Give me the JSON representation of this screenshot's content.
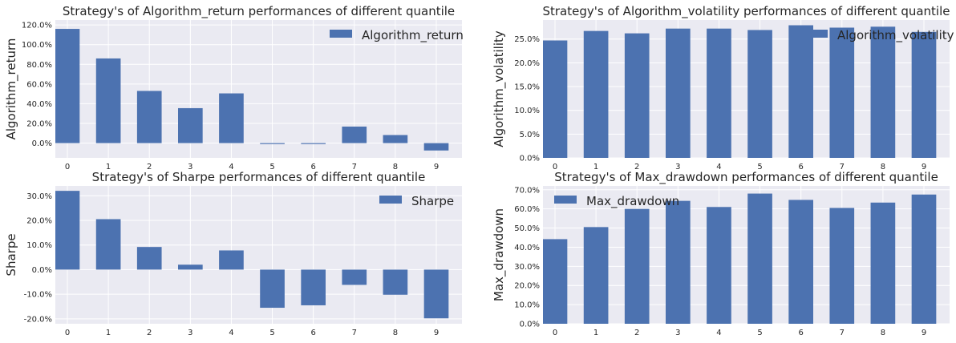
{
  "colors": {
    "bar": "#4c72b0",
    "axes_bg": "#eaeaf2",
    "grid": "#ffffff"
  },
  "chart_data": [
    {
      "type": "bar",
      "title": "Strategy's of Algorithm_return performances of different quantile",
      "ylabel": "Algorithm_return",
      "legend": "Algorithm_return",
      "legend_position": "top-right",
      "categories": [
        "0",
        "1",
        "2",
        "3",
        "4",
        "5",
        "6",
        "7",
        "8",
        "9"
      ],
      "values": [
        1.16,
        0.86,
        0.53,
        0.355,
        0.505,
        -0.005,
        -0.003,
        0.168,
        0.082,
        -0.075
      ],
      "ylim": [
        -0.15,
        1.25
      ],
      "yticks": [
        0.0,
        0.2,
        0.4,
        0.6,
        0.8,
        1.0,
        1.2
      ],
      "ytick_labels": [
        "0.0%",
        "20.0%",
        "40.0%",
        "60.0%",
        "80.0%",
        "100.0%",
        "120.0%"
      ],
      "grid": true
    },
    {
      "type": "bar",
      "title": "Strategy's of Algorithm_volatility performances of different quantile",
      "ylabel": "Algorithm_volatility",
      "legend": "Algorithm_volatility",
      "legend_position": "top-right",
      "categories": [
        "0",
        "1",
        "2",
        "3",
        "4",
        "5",
        "6",
        "7",
        "8",
        "9"
      ],
      "values": [
        0.247,
        0.267,
        0.262,
        0.272,
        0.272,
        0.269,
        0.279,
        0.274,
        0.276,
        0.265
      ],
      "ylim": [
        0,
        0.29
      ],
      "yticks": [
        0.0,
        0.05,
        0.1,
        0.15,
        0.2,
        0.25
      ],
      "ytick_labels": [
        "0.0%",
        "5.0%",
        "10.0%",
        "15.0%",
        "20.0%",
        "25.0%"
      ],
      "grid": true
    },
    {
      "type": "bar",
      "title": "Strategy's of Sharpe performances of different quantile",
      "ylabel": "Sharpe",
      "legend": "Sharpe",
      "legend_position": "top-right",
      "categories": [
        "0",
        "1",
        "2",
        "3",
        "4",
        "5",
        "6",
        "7",
        "8",
        "9"
      ],
      "values": [
        0.32,
        0.205,
        0.092,
        0.02,
        0.078,
        -0.155,
        -0.145,
        -0.062,
        -0.102,
        -0.198
      ],
      "ylim": [
        -0.22,
        0.34
      ],
      "yticks": [
        -0.2,
        -0.1,
        0.0,
        0.1,
        0.2,
        0.3
      ],
      "ytick_labels": [
        "-20.0%",
        "-10.0%",
        "0.0%",
        "10.0%",
        "20.0%",
        "30.0%"
      ],
      "grid": true
    },
    {
      "type": "bar",
      "title": "Strategy's of Max_drawdown performances of different quantile",
      "ylabel": "Max_drawdown",
      "legend": "Max_drawdown",
      "legend_position": "top-left",
      "categories": [
        "0",
        "1",
        "2",
        "3",
        "4",
        "5",
        "6",
        "7",
        "8",
        "9"
      ],
      "values": [
        0.442,
        0.505,
        0.6,
        0.642,
        0.61,
        0.68,
        0.647,
        0.605,
        0.633,
        0.675
      ],
      "ylim": [
        0,
        0.72
      ],
      "yticks": [
        0.0,
        0.1,
        0.2,
        0.3,
        0.4,
        0.5,
        0.6,
        0.7
      ],
      "ytick_labels": [
        "0.0%",
        "10.0%",
        "20.0%",
        "30.0%",
        "40.0%",
        "50.0%",
        "60.0%",
        "70.0%"
      ],
      "grid": true
    }
  ]
}
